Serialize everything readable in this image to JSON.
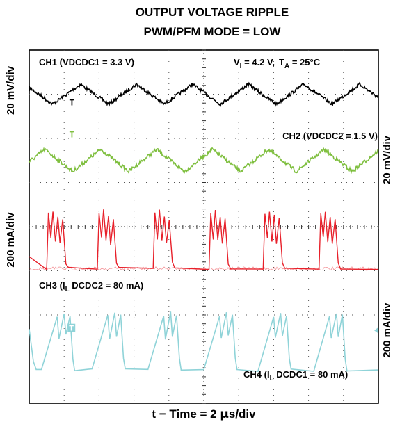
{
  "chart_data": {
    "type": "line",
    "title": [
      "OUTPUT VOLTAGE RIPPLE",
      "PWM/PFM MODE = LOW"
    ],
    "xlabel_parts": [
      "t − Time = 2 ",
      "μ",
      "s/div"
    ],
    "x_unit_per_div": "2 μs",
    "x_divisions": 10,
    "y_divisions": 8,
    "grid": true,
    "conditions": {
      "vi_symbol": "V",
      "vi_sub": "I",
      "vi_value": " = 4.2 V,",
      "ta_symbol": "T",
      "ta_sub": "A",
      "ta_value": " = 25°C"
    },
    "colors": {
      "ch1": "#000000",
      "ch2": "#7fbf3f",
      "ch3": "#e8202a",
      "ch4": "#8fd3d8"
    },
    "series": [
      {
        "id": "ch1",
        "label": "CH1 (VDCDC1 = 3.3 V)",
        "scale": "20 mV/div",
        "shape": "triangle",
        "period_div": 1.6,
        "peak_to_peak_div": 0.45,
        "peak_to_peak_mV": 9,
        "center_div_from_top": 1.0,
        "marker": "T"
      },
      {
        "id": "ch2",
        "label": "CH2 (VDCDC2 = 1.5 V)",
        "scale": "20 mV/div",
        "shape": "triangle",
        "period_div": 1.6,
        "peak_to_peak_div": 0.5,
        "peak_to_peak_mV": 10,
        "center_div_from_top": 2.5,
        "marker": "T"
      },
      {
        "id": "ch3",
        "label_prefix": "CH3 (I",
        "label_sub": "L",
        "label_suffix": " DCDC2 = 80 mA)",
        "scale": "200 mA/div",
        "shape": "pulsed-sawtooth",
        "period_div": 1.6,
        "peak_div": 1.25,
        "peak_mA": 250,
        "baseline_div_from_top": 4.95
      },
      {
        "id": "ch4",
        "label_prefix": "CH4 (I",
        "label_sub": "L",
        "label_suffix": " DCDC1 = 80 mA)",
        "scale": "200 mA/div",
        "shape": "ramp-burst",
        "period_div": 1.6,
        "peak_div": 1.3,
        "peak_mA": 260,
        "baseline_div_from_top": 7.25,
        "marker": "T"
      }
    ]
  }
}
